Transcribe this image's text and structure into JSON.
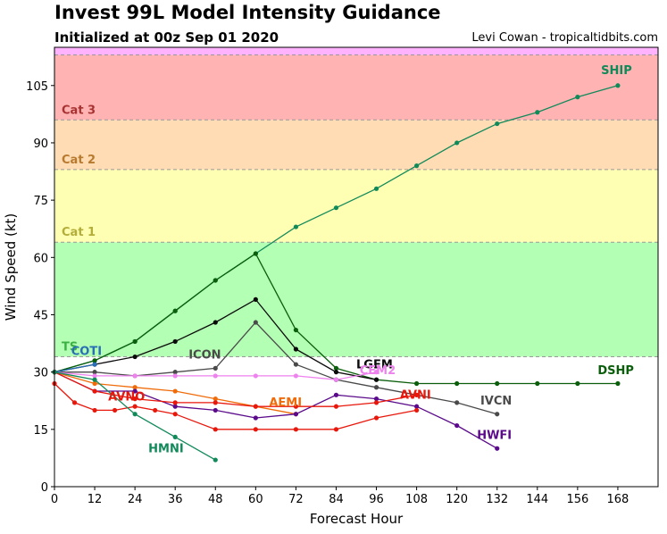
{
  "header": {
    "title": "Invest 99L Model Intensity Guidance",
    "subtitle": "Initialized at 00z Sep 01 2020",
    "credit": "Levi Cowan - tropicaltidbits.com"
  },
  "chart_data": {
    "type": "line",
    "xlabel": "Forecast Hour",
    "ylabel": "Wind Speed (kt)",
    "xlim": [
      0,
      180
    ],
    "ylim": [
      0,
      115
    ],
    "xticks": [
      0,
      12,
      24,
      36,
      48,
      60,
      72,
      84,
      96,
      108,
      120,
      132,
      144,
      156,
      168
    ],
    "yticks": [
      0,
      15,
      30,
      45,
      60,
      75,
      90,
      105
    ],
    "bands": [
      {
        "label": "",
        "from": 0,
        "to": 34,
        "color": "#ffffff",
        "label_color": ""
      },
      {
        "label": "TS",
        "from": 34,
        "to": 64,
        "color": "#b3ffb3",
        "label_color": "#3cb043"
      },
      {
        "label": "Cat 1",
        "from": 64,
        "to": 83,
        "color": "#ffffb3",
        "label_color": "#b3ad3a"
      },
      {
        "label": "Cat 2",
        "from": 83,
        "to": 96,
        "color": "#ffdcb3",
        "label_color": "#b87a2e"
      },
      {
        "label": "Cat 3",
        "from": 96,
        "to": 113,
        "color": "#ffb3b3",
        "label_color": "#a83232"
      },
      {
        "label": "",
        "from": 113,
        "to": 115,
        "color": "#ffb3ff",
        "label_color": ""
      }
    ],
    "series": [
      {
        "name": "SHIP",
        "color": "#118a5a",
        "x": [
          0,
          12,
          24,
          36,
          48,
          60,
          72,
          84,
          96,
          108,
          120,
          132,
          144,
          156,
          168
        ],
        "y": [
          30,
          33,
          38,
          46,
          54,
          61,
          68,
          73,
          78,
          84,
          90,
          95,
          98,
          102,
          105
        ]
      },
      {
        "name": "DSHP",
        "color": "#0b5e0b",
        "x": [
          0,
          12,
          24,
          36,
          48,
          60,
          72,
          84,
          96,
          108,
          120,
          132,
          144,
          156,
          168
        ],
        "y": [
          30,
          33,
          38,
          46,
          54,
          61,
          41,
          31,
          28,
          27,
          27,
          27,
          27,
          27,
          27
        ]
      },
      {
        "name": "LGEM",
        "color": "#0a0a0a",
        "x": [
          0,
          12,
          24,
          36,
          48,
          60,
          72,
          84,
          96
        ],
        "y": [
          30,
          32,
          34,
          38,
          43,
          49,
          36,
          30,
          28
        ]
      },
      {
        "name": "ICON",
        "color": "#4a4a4a",
        "x": [
          0,
          12,
          24,
          36,
          48,
          60,
          72,
          84
        ],
        "y": [
          30,
          30,
          29,
          30,
          31,
          43,
          32,
          28
        ]
      },
      {
        "name": "IVCN",
        "color": "#4a4a4a",
        "x": [
          84,
          96,
          108,
          120,
          132
        ],
        "y": [
          28,
          26,
          24,
          22,
          19
        ]
      },
      {
        "name": "CEM2",
        "color": "#ee82ee",
        "x": [
          0,
          12,
          24,
          36,
          48,
          60,
          72,
          84,
          96
        ],
        "y": [
          30,
          29,
          29,
          29,
          29,
          29,
          29,
          28,
          30
        ]
      },
      {
        "name": "COTI",
        "color": "#2a6fb5",
        "x": [
          0,
          12
        ],
        "y": [
          30,
          32
        ]
      },
      {
        "name": "AEMI",
        "color": "#f06c0a",
        "x": [
          0,
          12,
          24,
          36,
          48,
          60,
          72
        ],
        "y": [
          30,
          27,
          26,
          25,
          23,
          21,
          19
        ]
      },
      {
        "name": "HWFI",
        "color": "#5a0a8a",
        "x": [
          0,
          12,
          24,
          36,
          48,
          60,
          72,
          84,
          96,
          108,
          120,
          132
        ],
        "y": [
          30,
          25,
          25,
          21,
          20,
          18,
          19,
          24,
          23,
          21,
          16,
          10
        ]
      },
      {
        "name": "AVNO",
        "color": "#e8170c",
        "x": [
          0,
          6,
          12,
          18,
          24,
          30,
          36,
          48,
          60,
          72,
          84,
          96,
          108
        ],
        "y": [
          27,
          22,
          20,
          20,
          21,
          20,
          19,
          15,
          15,
          15,
          15,
          18,
          20
        ]
      },
      {
        "name": "AVNI",
        "color": "#e8170c",
        "x": [
          0,
          12,
          24,
          36,
          48,
          60,
          72,
          84,
          96,
          108
        ],
        "y": [
          30,
          25,
          23,
          22,
          22,
          21,
          21,
          21,
          22,
          24
        ]
      },
      {
        "name": "HMNI",
        "color": "#118a5a",
        "x": [
          0,
          12,
          24,
          36,
          48
        ],
        "y": [
          30,
          28,
          19,
          13,
          7
        ]
      }
    ],
    "annotations": [
      {
        "text": "SHIP",
        "x": 163,
        "y": 108,
        "color": "#118a5a"
      },
      {
        "text": "DSHP",
        "x": 162,
        "y": 29.5,
        "color": "#0b5e0b"
      },
      {
        "text": "LGEM",
        "x": 90,
        "y": 31,
        "color": "#0a0a0a"
      },
      {
        "text": "ICON",
        "x": 40,
        "y": 33.5,
        "color": "#4a4a4a"
      },
      {
        "text": "IVCN",
        "x": 127,
        "y": 21.5,
        "color": "#4a4a4a"
      },
      {
        "text": "CEM2",
        "x": 91,
        "y": 29.5,
        "color": "#ee82ee"
      },
      {
        "text": "COTI",
        "x": 5,
        "y": 34.5,
        "color": "#2a6fb5"
      },
      {
        "text": "AEMI",
        "x": 64,
        "y": 21,
        "color": "#f06c0a"
      },
      {
        "text": "HWFI",
        "x": 126,
        "y": 12.5,
        "color": "#5a0a8a"
      },
      {
        "text": "AVNO",
        "x": 16,
        "y": 22.5,
        "color": "#e8170c"
      },
      {
        "text": "AVNI",
        "x": 103,
        "y": 23,
        "color": "#e8170c"
      },
      {
        "text": "HMNI",
        "x": 28,
        "y": 9,
        "color": "#118a5a"
      }
    ]
  }
}
